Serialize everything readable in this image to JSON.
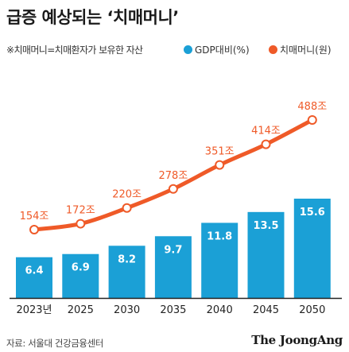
{
  "title": "급증 예상되는 ‘치매머니’",
  "note": "※치매머니=치매환자가 보유한 자산",
  "colors": {
    "bar": "#1ba0d6",
    "line": "#ef5a28",
    "label": "#ef5a28",
    "baseline": "#222222"
  },
  "chart_data": {
    "type": "bar",
    "categories": [
      "2023년",
      "2025",
      "2030",
      "2035",
      "2040",
      "2045",
      "2050"
    ],
    "series": [
      {
        "name": "GDP대비(%)",
        "type": "bar",
        "values": [
          6.4,
          6.9,
          8.2,
          9.7,
          11.8,
          13.5,
          15.6
        ]
      },
      {
        "name": "치매머니(원)",
        "type": "line",
        "values": [
          154,
          172,
          220,
          278,
          351,
          414,
          488
        ]
      }
    ],
    "line_labels": [
      "154조",
      "172조",
      "220조",
      "278조",
      "351조",
      "414조",
      "488조"
    ],
    "legend_position": "top",
    "grid": false
  },
  "source": "자료: 서울대 건강금융센터",
  "brand": "The JoongAng"
}
